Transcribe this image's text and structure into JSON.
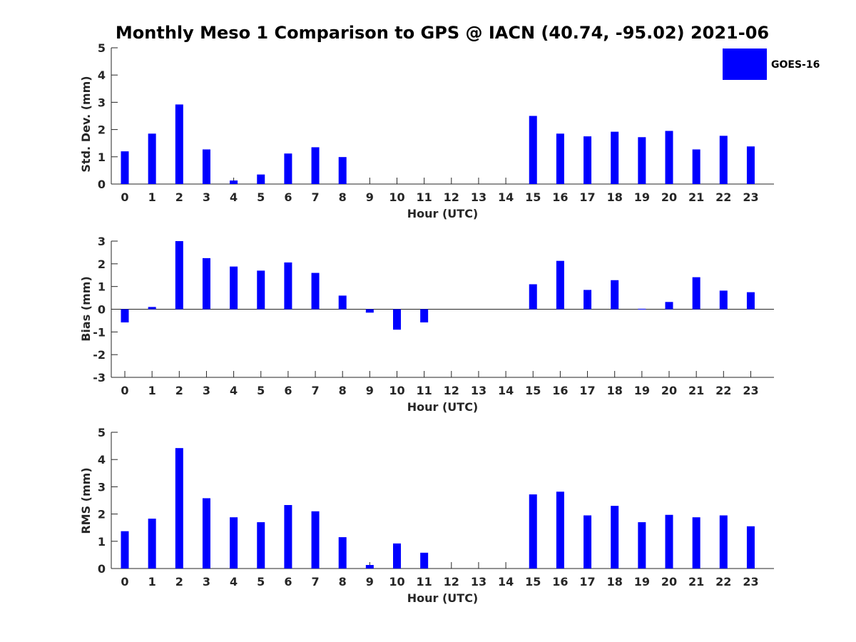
{
  "chart_data": {
    "title": "Monthly Meso 1 Comparison to GPS @ IACN (40.74, -95.02) 2021-06",
    "legend": {
      "label": "GOES-16",
      "color": "#0000ff",
      "placement": "top-right"
    },
    "categories": [
      "0",
      "1",
      "2",
      "3",
      "4",
      "5",
      "6",
      "7",
      "8",
      "9",
      "10",
      "11",
      "12",
      "13",
      "14",
      "15",
      "16",
      "17",
      "18",
      "19",
      "20",
      "21",
      "22",
      "23"
    ],
    "panels": [
      {
        "type": "bar",
        "ylabel": "Std. Dev. (mm)",
        "xlabel": "Hour (UTC)",
        "ylim": [
          0,
          5
        ],
        "yticks": [
          "0",
          "1",
          "2",
          "3",
          "4",
          "5"
        ],
        "series": [
          {
            "name": "GOES-16",
            "color": "#0000ff",
            "values": [
              1.2,
              1.85,
              2.92,
              1.27,
              0.13,
              0.35,
              1.12,
              1.35,
              0.99,
              null,
              null,
              null,
              null,
              null,
              null,
              2.5,
              1.85,
              1.75,
              1.92,
              1.72,
              1.95,
              1.27,
              1.77,
              1.38
            ]
          }
        ]
      },
      {
        "type": "bar",
        "ylabel": "Bias (mm)",
        "xlabel": "Hour (UTC)",
        "ylim": [
          -3,
          3
        ],
        "yticks": [
          "-3",
          "-2",
          "-1",
          "0",
          "1",
          "2",
          "3"
        ],
        "series": [
          {
            "name": "GOES-16",
            "color": "#0000ff",
            "values": [
              -0.58,
              0.1,
              3.0,
              2.25,
              1.88,
              1.7,
              2.06,
              1.6,
              0.6,
              -0.15,
              -0.9,
              -0.58,
              null,
              null,
              null,
              1.1,
              2.13,
              0.85,
              1.28,
              0.02,
              0.32,
              1.41,
              0.82,
              0.75
            ]
          }
        ]
      },
      {
        "type": "bar",
        "ylabel": "RMS (mm)",
        "xlabel": "Hour (UTC)",
        "ylim": [
          0,
          5
        ],
        "yticks": [
          "0",
          "1",
          "2",
          "3",
          "4",
          "5"
        ],
        "series": [
          {
            "name": "GOES-16",
            "color": "#0000ff",
            "values": [
              1.37,
              1.83,
              4.42,
              2.58,
              1.88,
              1.7,
              2.33,
              2.1,
              1.15,
              0.13,
              0.92,
              0.58,
              null,
              null,
              null,
              2.72,
              2.82,
              1.95,
              2.3,
              1.7,
              1.97,
              1.88,
              1.95,
              1.55
            ]
          }
        ]
      }
    ]
  }
}
